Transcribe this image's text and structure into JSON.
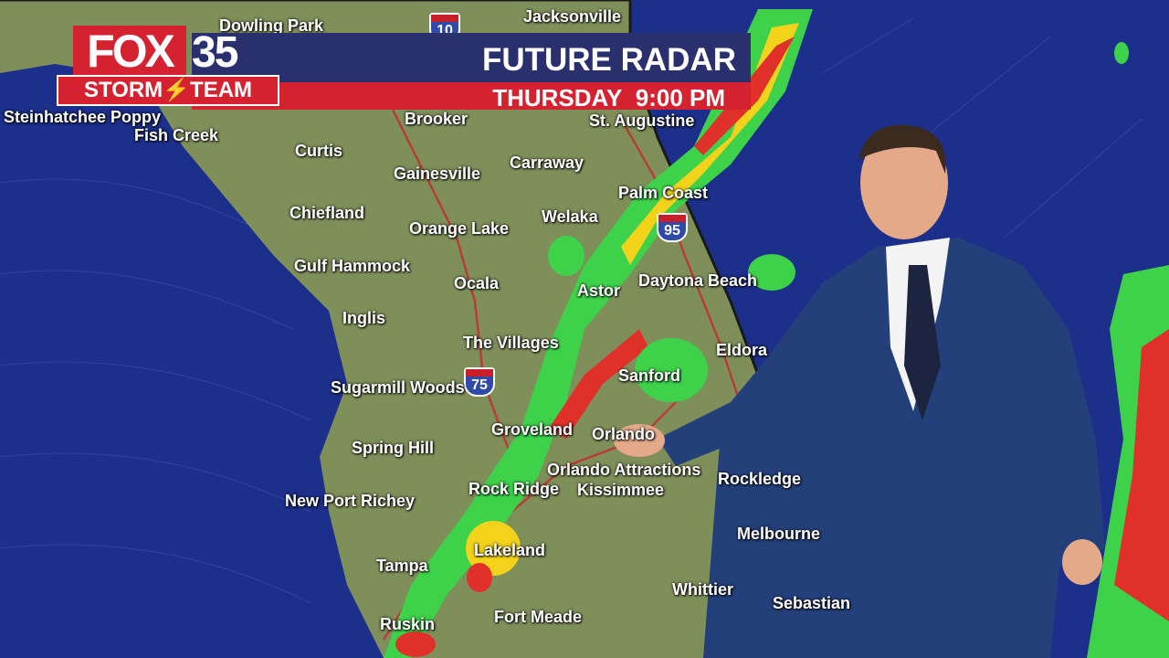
{
  "banner": {
    "logo_fox": "FOX",
    "logo_number": "35",
    "logo_team": "STORM⚡TEAM",
    "title": "FUTURE RADAR",
    "day": "THURSDAY",
    "time": "9:00 PM"
  },
  "cities": [
    "Dowling Park",
    "Jacksonville",
    "Brooker",
    "St. Augustine",
    "Fish Creek",
    "Curtis",
    "Gainesville",
    "Carraway",
    "Palm Coast",
    "Chiefland",
    "Orange Lake",
    "Welaka",
    "Gulf Hammock",
    "Ocala",
    "Astor",
    "Daytona Beach",
    "Inglis",
    "The Villages",
    "Eldora",
    "Sanford",
    "Sugarmill Woods",
    "Groveland",
    "Orlando",
    "Spring Hill",
    "Orlando Attractions",
    "Rockledge",
    "New Port Richey",
    "Rock Ridge",
    "Kissimmee",
    "Melbourne",
    "Tampa",
    "Lakeland",
    "Whittier",
    "Ruskin",
    "Fort Meade",
    "Sebastian",
    "Steinhatchee Poppy"
  ],
  "interstates": [
    "10",
    "95",
    "75"
  ],
  "colors": {
    "ocean": "#1c2f8a",
    "land": "#7f8f5a",
    "radar_light": "#3ed14a",
    "radar_moderate": "#f2d21a",
    "radar_heavy": "#e0302a",
    "banner_blue": "#2a2f6e",
    "banner_red": "#d52231"
  }
}
